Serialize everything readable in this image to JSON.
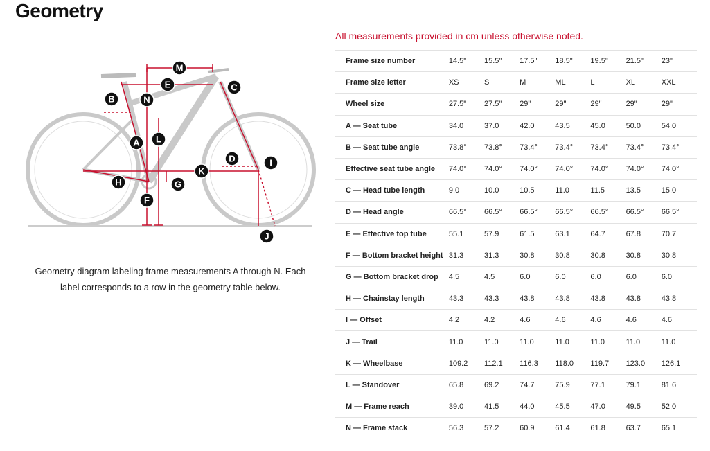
{
  "header": {
    "title": "Geometry"
  },
  "diagram": {
    "labels": [
      "M",
      "E",
      "C",
      "B",
      "N",
      "L",
      "A",
      "D",
      "I",
      "K",
      "H",
      "G",
      "F",
      "J"
    ],
    "caption": "Geometry diagram labeling frame measurements A through N. Each label corresponds to a row in the geometry table below."
  },
  "note": "All measurements provided in cm unless otherwise noted.",
  "table": {
    "rows": [
      [
        "Frame size number",
        "14.5\"",
        "15.5\"",
        "17.5\"",
        "18.5\"",
        "19.5\"",
        "21.5\"",
        "23\""
      ],
      [
        "Frame size letter",
        "XS",
        "S",
        "M",
        "ML",
        "L",
        "XL",
        "XXL"
      ],
      [
        "Wheel size",
        "27.5\"",
        "27.5\"",
        "29\"",
        "29\"",
        "29\"",
        "29\"",
        "29\""
      ],
      [
        "A — Seat tube",
        "34.0",
        "37.0",
        "42.0",
        "43.5",
        "45.0",
        "50.0",
        "54.0"
      ],
      [
        "B — Seat tube angle",
        "73.8°",
        "73.8°",
        "73.4°",
        "73.4°",
        "73.4°",
        "73.4°",
        "73.4°"
      ],
      [
        "Effective seat tube angle",
        "74.0°",
        "74.0°",
        "74.0°",
        "74.0°",
        "74.0°",
        "74.0°",
        "74.0°"
      ],
      [
        "C — Head tube length",
        "9.0",
        "10.0",
        "10.5",
        "11.0",
        "11.5",
        "13.5",
        "15.0"
      ],
      [
        "D — Head angle",
        "66.5°",
        "66.5°",
        "66.5°",
        "66.5°",
        "66.5°",
        "66.5°",
        "66.5°"
      ],
      [
        "E — Effective top tube",
        "55.1",
        "57.9",
        "61.5",
        "63.1",
        "64.7",
        "67.8",
        "70.7"
      ],
      [
        "F — Bottom bracket height",
        "31.3",
        "31.3",
        "30.8",
        "30.8",
        "30.8",
        "30.8",
        "30.8"
      ],
      [
        "G — Bottom bracket drop",
        "4.5",
        "4.5",
        "6.0",
        "6.0",
        "6.0",
        "6.0",
        "6.0"
      ],
      [
        "H — Chainstay length",
        "43.3",
        "43.3",
        "43.8",
        "43.8",
        "43.8",
        "43.8",
        "43.8"
      ],
      [
        "I — Offset",
        "4.2",
        "4.2",
        "4.6",
        "4.6",
        "4.6",
        "4.6",
        "4.6"
      ],
      [
        "J — Trail",
        "11.0",
        "11.0",
        "11.0",
        "11.0",
        "11.0",
        "11.0",
        "11.0"
      ],
      [
        "K — Wheelbase",
        "109.2",
        "112.1",
        "116.3",
        "118.0",
        "119.7",
        "123.0",
        "126.1"
      ],
      [
        "L — Standover",
        "65.8",
        "69.2",
        "74.7",
        "75.9",
        "77.1",
        "79.1",
        "81.6"
      ],
      [
        "M — Frame reach",
        "39.0",
        "41.5",
        "44.0",
        "45.5",
        "47.0",
        "49.5",
        "52.0"
      ],
      [
        "N — Frame stack",
        "56.3",
        "57.2",
        "60.9",
        "61.4",
        "61.8",
        "63.7",
        "65.1"
      ]
    ]
  }
}
